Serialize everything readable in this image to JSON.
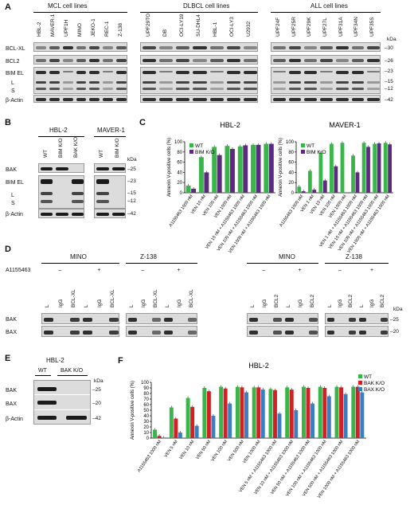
{
  "panelA": {
    "letter": "A",
    "groups": [
      {
        "title": "MCL cell lines",
        "lanes": [
          "HBL-2",
          "MAVER-1",
          "UPF1H",
          "MINO",
          "JEKO-1",
          "REC-1",
          "Z-138"
        ]
      },
      {
        "title": "DLBCL cell lines",
        "lanes": [
          "UPF29TO",
          "DB",
          "OCI-LY19",
          "SU-DHL4",
          "HBL-1",
          "OCI-LY3",
          "U2932"
        ]
      },
      {
        "title": "ALL cell lines",
        "lanes": [
          "UPF24F",
          "UPF25R",
          "UPF29K",
          "UPF27L",
          "UPF31A",
          "UPF34N",
          "UPF35S"
        ]
      }
    ],
    "rows": [
      "BCL-XL",
      "BCL2",
      "BIM EL",
      "L",
      "S",
      "β-Actin"
    ],
    "kda_title": "kDa",
    "kda": [
      "30",
      "26",
      "23",
      "15",
      "12",
      "42"
    ]
  },
  "panelB": {
    "letter": "B",
    "groups": [
      {
        "title": "HBL-2",
        "lanes": [
          "WT",
          "BIM K/O",
          "BAK K/O"
        ]
      },
      {
        "title": "MAVER-1",
        "lanes": [
          "WT",
          "BIM K/O"
        ]
      }
    ],
    "rows": [
      "BAK",
      "BIM EL",
      "L",
      "S",
      "β-Actin"
    ],
    "kda_title": "kDa",
    "kda": [
      "25",
      "23",
      "15",
      "12",
      "42"
    ]
  },
  "panelC": {
    "letter": "C",
    "ylabel": "Annexin V-positive cells (%)",
    "chart_data": [
      {
        "type": "bar",
        "title": "HBL-2",
        "ylabel": "Annexin V-positive cells (%)",
        "ylim": [
          0,
          100
        ],
        "yticks": [
          "0",
          "20",
          "40",
          "60",
          "80",
          "100"
        ],
        "categories": [
          "A1155463 1000 nM",
          "VEN 10 nM",
          "VEN 100 nM",
          "VEN 1000 nM",
          "VEN 10 nM + A1155463 1000 nM",
          "VEN 100 nM + A1155463 1000 nM",
          "VEN 1000 nM + A1155463 1000 nM"
        ],
        "series": [
          {
            "name": "WT",
            "color": "#3ab54a",
            "values": [
              14,
              70,
              90,
              92,
              91,
              94,
              96
            ]
          },
          {
            "name": "BIM K/O",
            "color": "#5c2a7e",
            "values": [
              8,
              40,
              74,
              86,
              93,
              94,
              96
            ]
          }
        ],
        "legend": "top-left"
      },
      {
        "type": "bar",
        "title": "MAVER-1",
        "ylabel": "Annexin V-positive cells (%)",
        "ylim": [
          0,
          100
        ],
        "yticks": [
          "0",
          "20",
          "40",
          "60",
          "80",
          "100"
        ],
        "categories": [
          "A1155463 1000 nM",
          "VEN 1 nM",
          "VEN 10 nM",
          "VEN 100 nM",
          "VEN 1000 nM",
          "VEN 1 nM + A1155463 1000 nM",
          "VEN 10 nM + A1155463 1000 nM",
          "VEN 100 nM + A1155463 1000 nM",
          "VEN 1000 nM + A1155463 1000 nM"
        ],
        "series": [
          {
            "name": "WT",
            "color": "#3ab54a",
            "values": [
              12,
              43,
              78,
              96,
              98,
              73,
              98,
              96,
              98
            ]
          },
          {
            "name": "BIM K/O",
            "color": "#5c2a7e",
            "values": [
              3,
              6,
              24,
              52,
              0,
              40,
              90,
              97,
              95
            ]
          }
        ],
        "legend": "top-left"
      }
    ]
  },
  "panelD": {
    "letter": "D",
    "blot1": {
      "groups": [
        {
          "title": "MINO",
          "lanes": [
            "L",
            "IgG",
            "BCL-XL",
            "L",
            "IgG",
            "BCL-XL"
          ]
        },
        {
          "title": "Z-138",
          "lanes": [
            "L",
            "IgG",
            "BCL-XL",
            "L",
            "IgG",
            "BCL-XL"
          ]
        }
      ],
      "treatment": "A1155463",
      "signs": [
        "–",
        "+",
        "–",
        "+"
      ],
      "rows": [
        "BAK",
        "BAX"
      ]
    },
    "blot2": {
      "groups": [
        {
          "title": "MINO",
          "lanes": [
            "L",
            "IgG",
            "BCL2",
            "L",
            "IgG",
            "BCL2"
          ]
        },
        {
          "title": "Z-138",
          "lanes": [
            "L",
            "IgG",
            "BCL2",
            "L",
            "IgG",
            "BCL2"
          ]
        }
      ],
      "signs": [
        "–",
        "+",
        "–",
        "+"
      ],
      "kda_title": "kDa",
      "kda": [
        "25",
        "20"
      ]
    }
  },
  "panelE": {
    "letter": "E",
    "title": "HBL-2",
    "lanes": [
      "WT",
      "BAK K/O"
    ],
    "rows": [
      "BAK",
      "BAX",
      "β-Actin"
    ],
    "kda_title": "kDa",
    "kda": [
      "25",
      "20",
      "42"
    ]
  },
  "panelF": {
    "letter": "F",
    "chart_data": {
      "type": "bar",
      "title": "HBL-2",
      "ylabel": "Annexin V-positive cells (%)",
      "ylim": [
        0,
        100
      ],
      "yticks": [
        "0",
        "10",
        "20",
        "30",
        "40",
        "50",
        "60",
        "70",
        "80",
        "90",
        "100"
      ],
      "categories": [
        "A1155463 1000 nM",
        "VEN 5 nM",
        "VEN 10 nM",
        "VEN 50 nM",
        "VEN 100 nM",
        "VEN 500 nM",
        "VEN 1000 nM",
        "VEN 5 nM + A1155463 1000 nM",
        "VEN 10 nM + A1155463 1000 nM",
        "VEN 50 nM + A1155463 1000 nM",
        "VEN 100 nM + A1155463 1000 nM",
        "VEN 500 nM + A1155463 1000 nM",
        "VEN 1000 nM + A1155463 1000 nM"
      ],
      "series": [
        {
          "name": "WT",
          "color": "#3ab54a",
          "values": [
            15,
            55,
            72,
            90,
            92,
            92,
            91,
            88,
            91,
            92,
            92,
            92,
            92
          ]
        },
        {
          "name": "BAK K/O",
          "color": "#d32027",
          "values": [
            4,
            35,
            56,
            84,
            89,
            91,
            91,
            86,
            87,
            90,
            90,
            91,
            92
          ]
        },
        {
          "name": "BAX K/O",
          "color": "#3a7fc1",
          "values": [
            1,
            10,
            22,
            40,
            62,
            82,
            87,
            44,
            50,
            62,
            75,
            79,
            82
          ]
        }
      ],
      "legend": "top-right"
    }
  }
}
